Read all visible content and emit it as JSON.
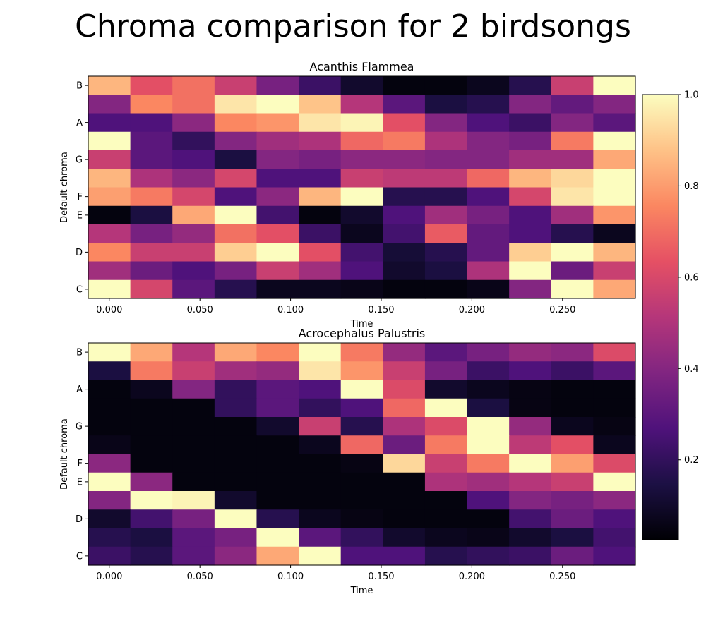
{
  "chart_data": {
    "type": "heatmap",
    "title": "Chroma comparison for 2 birdsongs",
    "colormap": "magma",
    "colorbar": {
      "range": [
        0.0,
        1.0
      ],
      "ticks": [
        "0.2",
        "0.4",
        "0.6",
        "0.8",
        "1.0"
      ]
    },
    "panels": [
      {
        "title": "Acanthis Flammea",
        "xlabel": "Time",
        "ylabel": "Default chroma",
        "xticks": [
          "0.000",
          "0.050",
          "0.100",
          "0.150",
          "0.200",
          "0.250"
        ],
        "yticks": [
          "C",
          "D",
          "E",
          "F",
          "G",
          "A",
          "B"
        ],
        "rows_top_to_bottom": [
          [
            0.85,
            0.62,
            0.7,
            0.55,
            0.35,
            0.2,
            0.08,
            0.02,
            0.02,
            0.05,
            0.15,
            0.55,
            1.0
          ],
          [
            0.38,
            0.75,
            0.7,
            0.95,
            1.0,
            0.88,
            0.5,
            0.28,
            0.12,
            0.15,
            0.38,
            0.3,
            0.38
          ],
          [
            0.25,
            0.25,
            0.4,
            0.75,
            0.78,
            0.95,
            0.98,
            0.62,
            0.38,
            0.25,
            0.2,
            0.38,
            0.28
          ],
          [
            1.0,
            0.28,
            0.18,
            0.38,
            0.45,
            0.48,
            0.68,
            0.72,
            0.48,
            0.38,
            0.35,
            0.72,
            1.0
          ],
          [
            0.55,
            0.28,
            0.25,
            0.12,
            0.38,
            0.35,
            0.4,
            0.4,
            0.38,
            0.38,
            0.45,
            0.45,
            0.82
          ],
          [
            0.85,
            0.48,
            0.4,
            0.58,
            0.25,
            0.25,
            0.55,
            0.52,
            0.52,
            0.68,
            0.85,
            0.92,
            1.0
          ],
          [
            0.8,
            0.72,
            0.58,
            0.25,
            0.4,
            0.85,
            1.0,
            0.15,
            0.15,
            0.25,
            0.58,
            0.95,
            1.0
          ],
          [
            0.02,
            0.12,
            0.82,
            1.0,
            0.22,
            0.02,
            0.08,
            0.25,
            0.45,
            0.35,
            0.25,
            0.45,
            0.78
          ],
          [
            0.5,
            0.35,
            0.42,
            0.7,
            0.62,
            0.2,
            0.05,
            0.22,
            0.65,
            0.3,
            0.25,
            0.15,
            0.05
          ],
          [
            0.75,
            0.55,
            0.55,
            0.9,
            1.0,
            0.62,
            0.22,
            0.1,
            0.15,
            0.3,
            0.9,
            1.0,
            0.85
          ],
          [
            0.45,
            0.32,
            0.25,
            0.35,
            0.55,
            0.45,
            0.25,
            0.08,
            0.12,
            0.48,
            1.0,
            0.32,
            0.55
          ],
          [
            1.0,
            0.58,
            0.28,
            0.15,
            0.05,
            0.05,
            0.04,
            0.02,
            0.02,
            0.04,
            0.38,
            1.0,
            0.82
          ]
        ]
      },
      {
        "title": "Acrocephalus Palustris",
        "xlabel": "Time",
        "ylabel": "Default chroma",
        "xticks": [
          "0.000",
          "0.050",
          "0.100",
          "0.150",
          "0.200",
          "0.250"
        ],
        "yticks": [
          "C",
          "D",
          "E",
          "F",
          "G",
          "A",
          "B"
        ],
        "rows_top_to_bottom": [
          [
            1.0,
            0.82,
            0.5,
            0.82,
            0.75,
            1.0,
            0.72,
            0.42,
            0.28,
            0.35,
            0.42,
            0.4,
            0.6
          ],
          [
            0.12,
            0.72,
            0.55,
            0.45,
            0.42,
            0.95,
            0.78,
            0.55,
            0.35,
            0.2,
            0.25,
            0.2,
            0.28
          ],
          [
            0.02,
            0.05,
            0.38,
            0.18,
            0.28,
            0.25,
            1.0,
            0.6,
            0.08,
            0.05,
            0.03,
            0.02,
            0.02
          ],
          [
            0.02,
            0.02,
            0.02,
            0.18,
            0.28,
            0.18,
            0.25,
            0.68,
            1.0,
            0.12,
            0.03,
            0.02,
            0.02
          ],
          [
            0.02,
            0.02,
            0.02,
            0.02,
            0.08,
            0.55,
            0.15,
            0.48,
            0.6,
            1.0,
            0.42,
            0.05,
            0.03
          ],
          [
            0.04,
            0.02,
            0.02,
            0.02,
            0.02,
            0.05,
            0.68,
            0.32,
            0.72,
            1.0,
            0.52,
            0.62,
            0.05
          ],
          [
            0.4,
            0.02,
            0.02,
            0.02,
            0.02,
            0.02,
            0.03,
            0.92,
            0.55,
            0.72,
            1.0,
            0.8,
            0.6
          ],
          [
            1.0,
            0.4,
            0.02,
            0.02,
            0.02,
            0.02,
            0.02,
            0.02,
            0.48,
            0.45,
            0.5,
            0.55,
            1.0
          ],
          [
            0.38,
            1.0,
            0.98,
            0.08,
            0.02,
            0.02,
            0.02,
            0.02,
            0.02,
            0.25,
            0.38,
            0.35,
            0.4
          ],
          [
            0.08,
            0.22,
            0.35,
            1.0,
            0.15,
            0.05,
            0.03,
            0.02,
            0.02,
            0.02,
            0.22,
            0.32,
            0.25
          ],
          [
            0.15,
            0.12,
            0.28,
            0.35,
            1.0,
            0.28,
            0.18,
            0.08,
            0.05,
            0.04,
            0.08,
            0.12,
            0.22
          ],
          [
            0.2,
            0.15,
            0.28,
            0.4,
            0.82,
            1.0,
            0.25,
            0.25,
            0.15,
            0.18,
            0.2,
            0.32,
            0.25
          ]
        ]
      }
    ]
  }
}
